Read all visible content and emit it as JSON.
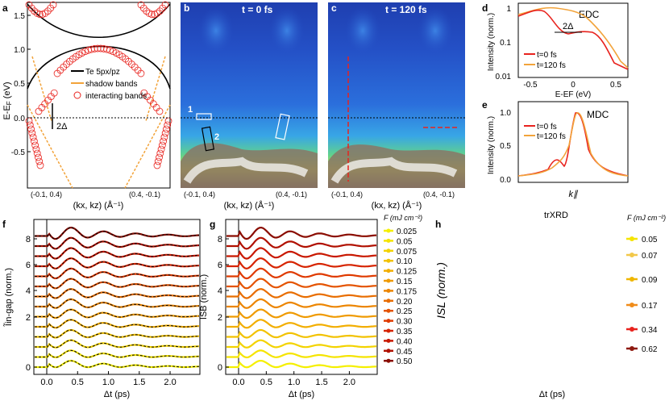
{
  "panel_letters": {
    "a": "a",
    "b": "b",
    "c": "c",
    "d": "d",
    "e": "e",
    "f": "f",
    "g": "g",
    "h": "h"
  },
  "panel_a": {
    "ylabel": "E-E",
    "ylabel_sub": "F",
    "ylabel_unit": " (eV)",
    "yticks": [
      "1.5",
      "1.0",
      "0.5",
      "0.0",
      "-0.5"
    ],
    "xtick_left": "(-0.1, 0.4)",
    "xtick_right": "(0.4, -0.1)",
    "xlabel": "(k",
    "xlabel_full": "(kx, kz) (Å⁻¹)",
    "legend": [
      "Te 5px/pz",
      "shadow bands",
      "interacting bands"
    ],
    "gap_label": "2Δ"
  },
  "panel_b": {
    "title": "t = 0 fs",
    "box1": "1",
    "box2": "2",
    "xtick_left": "(-0.1, 0.4)",
    "xtick_right": "(0.4, -0.1)",
    "xlabel_full": "(kx, kz) (Å⁻¹)"
  },
  "panel_c": {
    "title": "t = 120 fs",
    "xtick_left": "(-0.1, 0.4)",
    "xtick_right": "(0.4, -0.1)",
    "xlabel_full": "(kx, kz) (Å⁻¹)"
  },
  "panel_d": {
    "tag": "EDC",
    "ylabel": "Intensity (norm.)",
    "xlabel": "E-EF (eV)",
    "yticks": [
      "1",
      "0.1",
      "0.01"
    ],
    "xticks": [
      "-0.5",
      "0",
      "0.5"
    ],
    "gap_label": "2Δ",
    "legend": [
      "t=0 fs",
      "t=120 fs"
    ]
  },
  "panel_e": {
    "tag": "MDC",
    "ylabel": "Intensity (norm.)",
    "xlabel": "k∥",
    "yticks": [
      "1.0",
      "0.5",
      "0.0"
    ],
    "legend": [
      "t=0 fs",
      "t=120 fs"
    ]
  },
  "panel_f": {
    "ylabel": "Ĩin-gap (norm.)",
    "xlabel": "Δt (ps)",
    "yticks": [
      "8",
      "6",
      "4",
      "2",
      "0"
    ],
    "xticks": [
      "0.0",
      "0.5",
      "1.0",
      "1.5",
      "2.0"
    ]
  },
  "panel_g": {
    "ylabel": "ISB (norm.)",
    "xlabel": "Δt (ps)",
    "yticks": [
      "8",
      "6",
      "4",
      "2",
      "0"
    ],
    "xticks": [
      "0.0",
      "0.5",
      "1.0",
      "1.5",
      "2.0"
    ],
    "fluence_header": "F (mJ cm⁻²)",
    "fluences": [
      "0.025",
      "0.05",
      "0.075",
      "0.10",
      "0.125",
      "0.15",
      "0.175",
      "0.20",
      "0.25",
      "0.30",
      "0.35",
      "0.40",
      "0.45",
      "0.50"
    ]
  },
  "panel_h": {
    "title": "trXRD",
    "ylabel": "ISL (norm.)",
    "xlabel": "Δt (ps)",
    "fluence_header": "F (mJ cm⁻²)",
    "fluences": [
      "0.05",
      "0.07",
      "0.09",
      "0.17",
      "0.34",
      "0.62"
    ]
  },
  "colors": {
    "red": "#e8231e",
    "orange": "#f2a33a",
    "black": "#000000",
    "fluence_g": [
      "#f5ef00",
      "#f5e400",
      "#f3d300",
      "#f2c200",
      "#f2ae00",
      "#ef9a00",
      "#ec8500",
      "#e86d00",
      "#e45300",
      "#df3a00",
      "#d62400",
      "#c81800",
      "#b01000",
      "#8a0c00"
    ],
    "fluence_h": [
      "#f5e400",
      "#f2c84a",
      "#efb600",
      "#f08c1a",
      "#e8231e",
      "#8e1a10"
    ]
  }
}
